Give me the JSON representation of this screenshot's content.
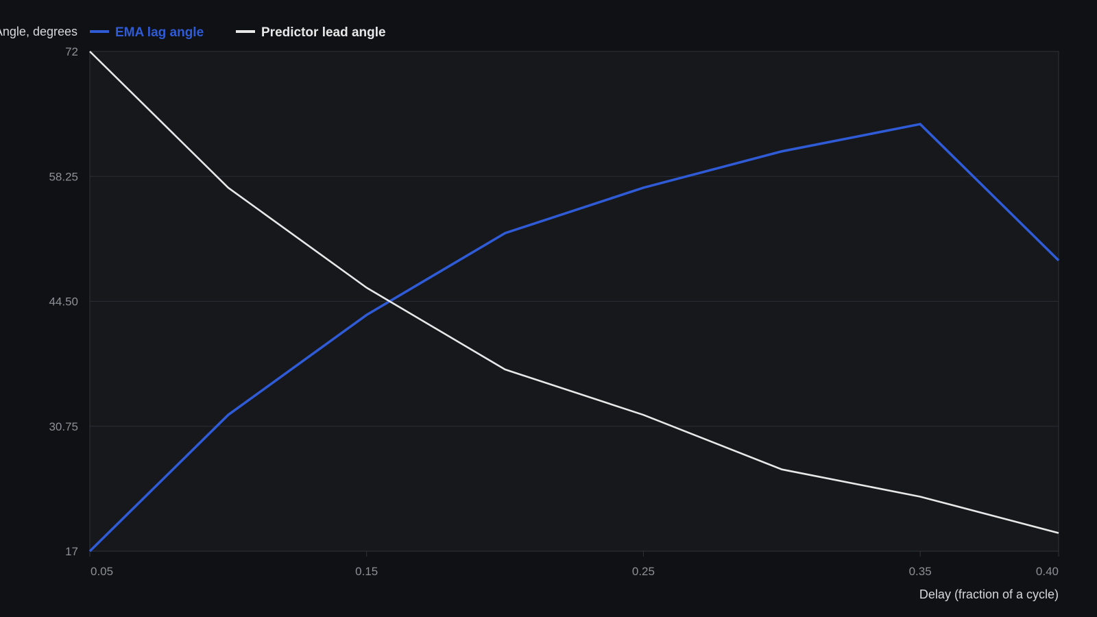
{
  "chart_data": {
    "type": "line",
    "ylabel": "Angle, degrees",
    "xlabel": "Delay (fraction of a cycle)",
    "x": [
      0.05,
      0.1,
      0.15,
      0.2,
      0.25,
      0.3,
      0.35,
      0.4
    ],
    "x_tick_values": [
      0.05,
      0.15,
      0.25,
      0.35,
      0.4
    ],
    "x_tick_labels": [
      "0.05",
      "0.15",
      "0.25",
      "0.35",
      "0.40"
    ],
    "y_tick_values": [
      17,
      30.75,
      44.5,
      58.25,
      72
    ],
    "y_tick_labels": [
      "17",
      "30.75",
      "44.50",
      "58.25",
      "72"
    ],
    "xlim": [
      0.05,
      0.4
    ],
    "ylim": [
      17,
      72
    ],
    "grid": true,
    "legend_position": "top-left",
    "series": [
      {
        "name": "EMA lag angle",
        "color": "#2f5bd6",
        "values": [
          17,
          32,
          43,
          52,
          57,
          61,
          64,
          49
        ]
      },
      {
        "name": "Predictor lead angle",
        "color": "#e8e8e8",
        "values": [
          72,
          57,
          46,
          37,
          32,
          26,
          23,
          19
        ]
      }
    ]
  }
}
